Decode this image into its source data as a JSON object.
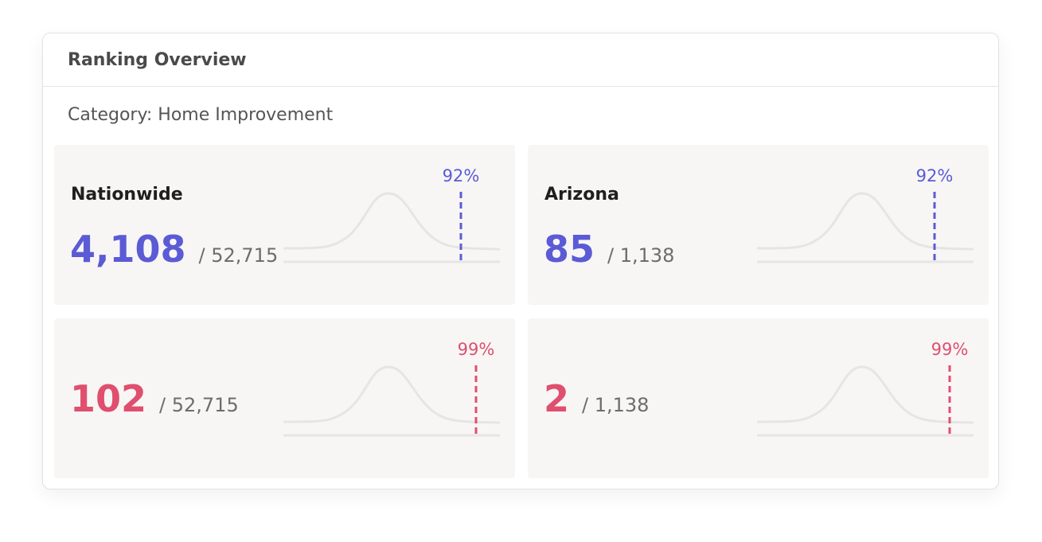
{
  "panel": {
    "title": "Ranking Overview",
    "category": "Category: Home Improvement"
  },
  "colors": {
    "accent_blue": "#5b5bd6",
    "accent_red": "#e04f6e",
    "curve": "#e6e5e3",
    "card_bg": "#f7f6f5"
  },
  "cards": [
    {
      "title": "Nationwide",
      "rank": "4,108",
      "total": "/ 52,715",
      "percentile_label": "92%",
      "percentile": 92,
      "color": "blue"
    },
    {
      "title": "Arizona",
      "rank": "85",
      "total": "/ 1,138",
      "percentile_label": "92%",
      "percentile": 92,
      "color": "blue"
    },
    {
      "title": "",
      "rank": "102",
      "total": "/ 52,715",
      "percentile_label": "99%",
      "percentile": 99,
      "color": "red"
    },
    {
      "title": "",
      "rank": "2",
      "total": "/ 1,138",
      "percentile_label": "99%",
      "percentile": 99,
      "color": "red"
    }
  ]
}
